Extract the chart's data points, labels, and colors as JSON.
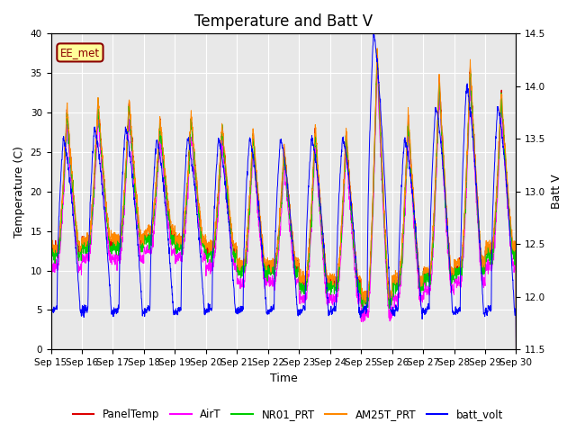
{
  "title": "Temperature and Batt V",
  "xlabel": "Time",
  "ylabel_left": "Temperature (C)",
  "ylabel_right": "Batt V",
  "annotation": "EE_met",
  "ylim_left": [
    0,
    40
  ],
  "ylim_right": [
    11.5,
    14.5
  ],
  "x_tick_labels": [
    "Sep 15",
    "Sep 16",
    "Sep 17",
    "Sep 18",
    "Sep 19",
    "Sep 20",
    "Sep 21",
    "Sep 22",
    "Sep 23",
    "Sep 24",
    "Sep 25",
    "Sep 26",
    "Sep 27",
    "Sep 28",
    "Sep 29",
    "Sep 30"
  ],
  "series_colors": {
    "PanelTemp": "#dd0000",
    "AirT": "#ff00ff",
    "NR01_PRT": "#00cc00",
    "AM25T_PRT": "#ff8800",
    "batt_volt": "#0000ff"
  },
  "legend_entries": [
    "PanelTemp",
    "AirT",
    "NR01_PRT",
    "AM25T_PRT",
    "batt_volt"
  ],
  "background_color": "#e8e8e8",
  "figure_background": "#ffffff",
  "grid_color": "#ffffff",
  "title_fontsize": 12,
  "axis_fontsize": 9,
  "tick_fontsize": 7.5,
  "legend_fontsize": 8.5,
  "figsize": [
    6.4,
    4.8
  ],
  "dpi": 100,
  "day_peaks_temp": [
    30,
    31,
    31,
    28.5,
    29,
    28,
    27,
    25,
    27.5,
    27,
    37.5,
    29,
    34,
    35.5,
    32
  ],
  "day_mins_temp": [
    12,
    13,
    13,
    14,
    13,
    12,
    10,
    10,
    8,
    8,
    6,
    8,
    9,
    10,
    12
  ],
  "batt_day_highs": [
    13.5,
    13.6,
    13.6,
    13.5,
    13.5,
    13.5,
    13.5,
    13.5,
    13.5,
    13.5,
    14.5,
    13.5,
    13.8,
    14.0,
    13.8
  ],
  "batt_night_low": 11.85
}
